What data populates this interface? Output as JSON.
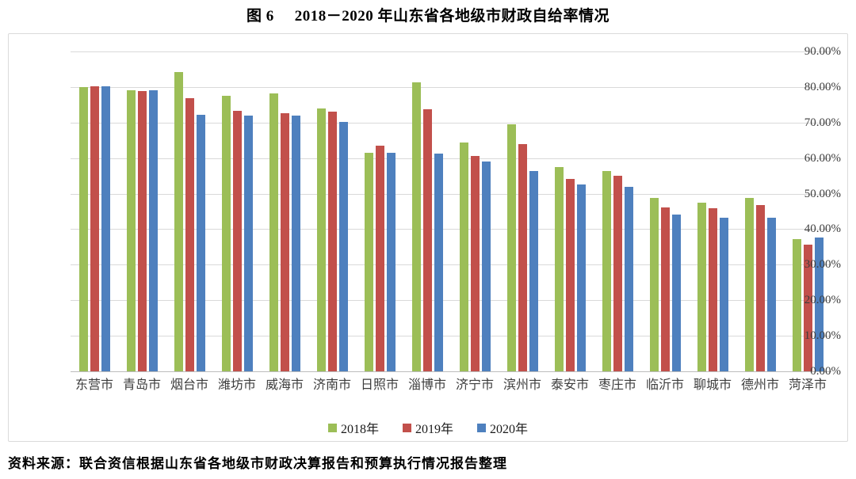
{
  "figure": {
    "title_prefix": "图 6",
    "title_text": "2018－2020 年山东省各地级市财政自给率情况",
    "source_note": "资料来源：联合资信根据山东省各地级市财政决算报告和预算执行情况报告整理"
  },
  "colors": {
    "series_2018": "#9CBE57",
    "series_2019": "#C2504B",
    "series_2020": "#4E80BE",
    "gridline": "#D9D9D9",
    "axis_line": "#BCBCBC",
    "chart_border": "#DADADA",
    "tick_text": "#3D3D3D"
  },
  "chart_data": {
    "type": "bar",
    "title": "图 6 2018－2020 年山东省各地级市财政自给率情况",
    "categories": [
      "东营市",
      "青岛市",
      "烟台市",
      "潍坊市",
      "威海市",
      "济南市",
      "日照市",
      "淄博市",
      "济宁市",
      "滨州市",
      "泰安市",
      "枣庄市",
      "临沂市",
      "聊城市",
      "德州市",
      "菏泽市"
    ],
    "series": [
      {
        "name": "2018年",
        "color": "#9CBE57",
        "values": [
          80.0,
          79.1,
          84.2,
          77.6,
          78.1,
          73.9,
          61.5,
          81.3,
          64.3,
          69.5,
          57.5,
          56.3,
          48.8,
          47.4,
          48.7,
          37.2
        ]
      },
      {
        "name": "2019年",
        "color": "#C2504B",
        "values": [
          80.2,
          78.8,
          76.9,
          73.4,
          72.7,
          73.0,
          63.5,
          73.7,
          60.6,
          63.9,
          54.1,
          55.0,
          46.2,
          45.8,
          46.8,
          35.7
        ]
      },
      {
        "name": "2020年",
        "color": "#4E80BE",
        "values": [
          80.2,
          79.0,
          72.1,
          72.0,
          72.0,
          70.2,
          61.5,
          61.2,
          59.0,
          56.4,
          52.6,
          52.0,
          44.1,
          43.2,
          43.3,
          37.6
        ]
      }
    ],
    "xlabel": "",
    "ylabel": "",
    "ylim": [
      0,
      90
    ],
    "y_tick_step": 10,
    "y_tick_labels": [
      "0.00%",
      "10.00%",
      "20.00%",
      "30.00%",
      "40.00%",
      "50.00%",
      "60.00%",
      "70.00%",
      "80.00%",
      "90.00%"
    ],
    "grid": true,
    "legend_position": "bottom"
  }
}
